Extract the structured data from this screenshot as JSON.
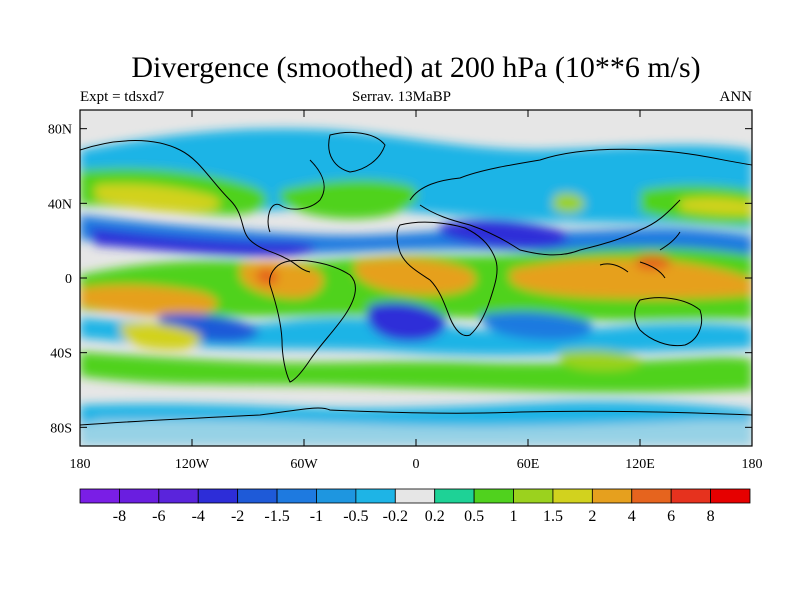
{
  "title": "Divergence (smoothed) at 200 hPa (10**6 m/s)",
  "subtitle_left": "Expt = tdsxd7",
  "subtitle_center": "Serrav.   13MaBP",
  "subtitle_right": "ANN",
  "map": {
    "lat_ticks": [
      "80N",
      "40N",
      "0",
      "40S",
      "80S"
    ],
    "lon_ticks": [
      "180",
      "120W",
      "60W",
      "0",
      "60E",
      "120E",
      "180"
    ],
    "lat_values": [
      80,
      40,
      0,
      -40,
      -80
    ],
    "lon_values": [
      -180,
      -120,
      -60,
      0,
      60,
      120,
      180
    ],
    "lat_range": [
      -90,
      90
    ],
    "lon_range": [
      -180,
      180
    ]
  },
  "colorbar": {
    "labels": [
      "-8",
      "-6",
      "-4",
      "-2",
      "-1.5",
      "-1",
      "-0.5",
      "-0.2",
      "0.2",
      "0.5",
      "1",
      "1.5",
      "2",
      "4",
      "6",
      "8"
    ],
    "colors": [
      "#7a1ee6",
      "#6a1ee0",
      "#5a24dc",
      "#2d2dd8",
      "#1e5ad8",
      "#1e7ae0",
      "#1e96e0",
      "#1eb4e6",
      "#e6e6e6",
      "#1ed296",
      "#50d21e",
      "#9bd21e",
      "#d2d21e",
      "#e6a01e",
      "#e6641e",
      "#e6321e",
      "#e60000"
    ]
  },
  "colors": {
    "neutral": "#e6e6e6",
    "coastline": "#000000"
  }
}
